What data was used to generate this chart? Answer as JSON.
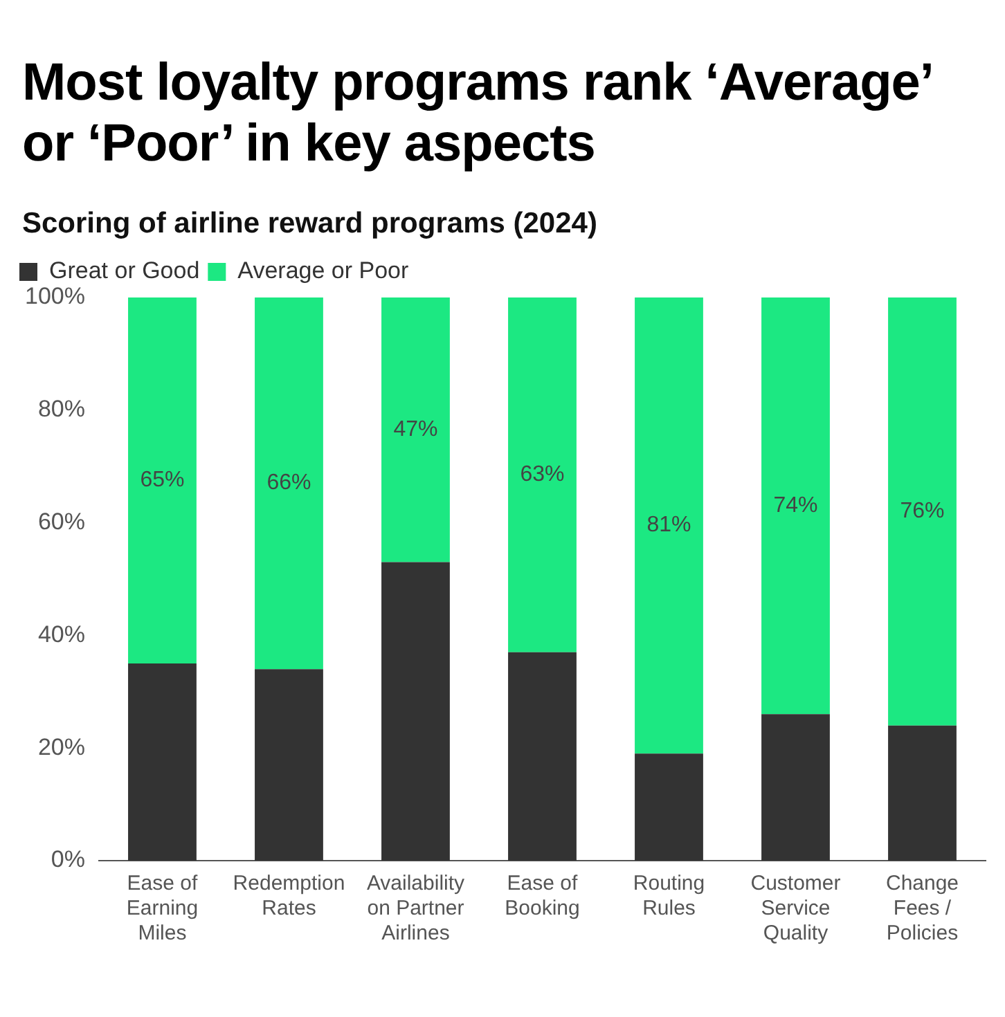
{
  "chart_data": {
    "type": "bar",
    "title": "Most loyalty programs rank ‘Average’ or ‘Poor’ in key aspects",
    "subtitle": "Scoring of airline reward programs (2024)",
    "categories": [
      "Ease of Earning Miles",
      "Redemption Rates",
      "Availability on Partner Airlines",
      "Ease of Booking",
      "Routing Rules",
      "Customer Service Quality",
      "Change Fees / Policies"
    ],
    "series": [
      {
        "name": "Great or Good",
        "color": "#333333",
        "values": [
          35,
          34,
          53,
          37,
          19,
          26,
          24
        ]
      },
      {
        "name": "Average or Poor",
        "color": "#1ce882",
        "values": [
          65,
          66,
          47,
          63,
          81,
          74,
          76
        ],
        "value_labels": [
          "65%",
          "66%",
          "47%",
          "63%",
          "81%",
          "74%",
          "76%"
        ]
      }
    ],
    "stacked": true,
    "ylim": [
      0,
      100
    ],
    "yticks": [
      {
        "value": 0,
        "label": "0%"
      },
      {
        "value": 20,
        "label": "20%"
      },
      {
        "value": 40,
        "label": "40%"
      },
      {
        "value": 60,
        "label": "60%"
      },
      {
        "value": 80,
        "label": "80%"
      },
      {
        "value": 100,
        "label": "100%"
      }
    ],
    "grid": false,
    "legend": "top left"
  }
}
